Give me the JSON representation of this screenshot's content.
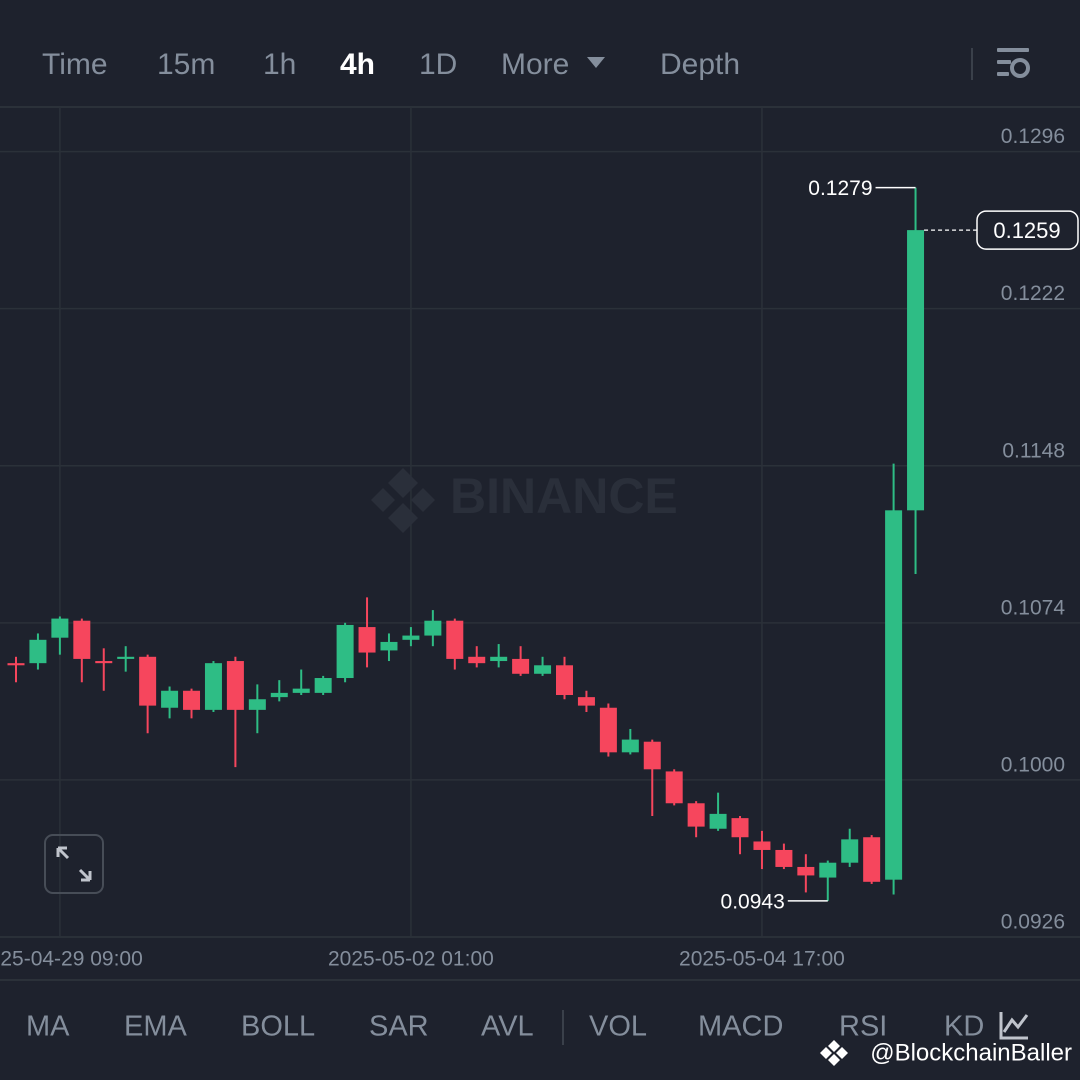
{
  "toolbar": {
    "tabs": [
      "Time",
      "15m",
      "1h",
      "4h",
      "1D",
      "More",
      "Depth"
    ],
    "active_tab": 3
  },
  "chart_data": {
    "type": "candlestick",
    "watermark": "BINANCE",
    "categories": [
      null,
      null,
      "2025-04-29 09:00",
      null,
      null,
      null,
      null,
      null,
      null,
      null,
      null,
      null,
      null,
      null,
      null,
      null,
      null,
      null,
      "2025-05-02 01:00",
      null,
      null,
      null,
      null,
      null,
      null,
      null,
      null,
      null,
      null,
      null,
      null,
      null,
      null,
      null,
      "2025-05-04 17:00",
      null,
      null,
      null,
      null,
      null,
      null,
      null
    ],
    "open": [
      0.1055,
      0.1055,
      0.1067,
      0.1075,
      0.1056,
      0.1057,
      0.1058,
      0.1034,
      0.1042,
      0.1033,
      0.1056,
      0.1033,
      0.1039,
      0.1041,
      0.1041,
      0.1048,
      0.1072,
      0.1061,
      0.1066,
      0.1068,
      0.1075,
      0.1058,
      0.1056,
      0.1057,
      0.105,
      0.1054,
      0.1039,
      0.1034,
      0.1013,
      0.1018,
      0.1004,
      0.0989,
      0.0977,
      0.0982,
      0.0971,
      0.0967,
      0.0959,
      0.0954,
      0.0961,
      0.0973,
      0.0953,
      0.1127
    ],
    "high": [
      0.1058,
      0.1069,
      0.1077,
      0.1076,
      0.1062,
      0.1063,
      0.1059,
      0.1044,
      0.1043,
      0.1056,
      0.1058,
      0.1045,
      0.1047,
      0.1052,
      0.1049,
      0.1074,
      0.1086,
      0.1069,
      0.1072,
      0.108,
      0.1076,
      0.1063,
      0.1064,
      0.1063,
      0.1058,
      0.1058,
      0.1042,
      0.1036,
      0.1024,
      0.1019,
      0.1005,
      0.099,
      0.0994,
      0.0983,
      0.0976,
      0.097,
      0.0965,
      0.0962,
      0.0977,
      0.0974,
      0.1149,
      0.1279
    ],
    "low": [
      0.1046,
      0.1052,
      0.1059,
      0.1046,
      0.1042,
      0.1051,
      0.1022,
      0.1029,
      0.1029,
      0.1032,
      0.1006,
      0.1022,
      0.1037,
      0.104,
      0.104,
      0.1046,
      0.1053,
      0.1056,
      0.1063,
      0.1063,
      0.1052,
      0.1053,
      0.1053,
      0.1049,
      0.1049,
      0.1038,
      0.1032,
      0.1011,
      0.1012,
      0.0983,
      0.0988,
      0.0973,
      0.0976,
      0.0965,
      0.0958,
      0.0958,
      0.0947,
      0.0943,
      0.0959,
      0.0951,
      0.0946,
      0.1097
    ],
    "close": [
      0.1054,
      0.1066,
      0.1076,
      0.1057,
      0.1055,
      0.1058,
      0.1035,
      0.1042,
      0.1033,
      0.1055,
      0.1033,
      0.1038,
      0.1041,
      0.1043,
      0.1048,
      0.1073,
      0.106,
      0.1065,
      0.1068,
      0.1075,
      0.1057,
      0.1055,
      0.1058,
      0.105,
      0.1054,
      0.104,
      0.1035,
      0.1013,
      0.1019,
      0.1005,
      0.0989,
      0.0978,
      0.0984,
      0.0973,
      0.0967,
      0.0959,
      0.0955,
      0.0961,
      0.0972,
      0.0952,
      0.1127,
      0.1259
    ],
    "up_color": "#2ebd85",
    "down_color": "#f6465d",
    "ylim": [
      0.0926,
      0.1317
    ],
    "yticks": [
      0.0926,
      {
        "value": 0.1,
        "label": "0.1000"
      },
      0.1074,
      0.1148,
      0.1222,
      0.1296
    ],
    "grid": true
  },
  "indicators": [
    "MA",
    "EMA",
    "BOLL",
    "SAR",
    "AVL",
    "VOL",
    "MACD",
    "RSI",
    "KD"
  ],
  "credit": "@BlockchainBaller"
}
